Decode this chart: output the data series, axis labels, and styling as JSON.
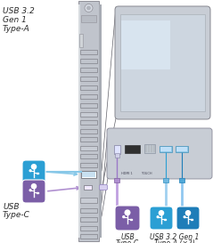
{
  "usb_type_a_label": [
    "USB 3.2",
    "Gen 1",
    "Type-A"
  ],
  "usb_type_c_label": [
    "USB",
    "Type-C"
  ],
  "bottom_usb_c_label": [
    "USB",
    "Type-C"
  ],
  "bottom_usb_a_label": [
    "USB 3.2 Gen 1",
    "Type-A (×2)"
  ],
  "color_blue": "#2b9fd4",
  "color_blue2": "#1e7db8",
  "color_purple": "#7B5EA7",
  "color_line_blue": "#88c8e8",
  "color_line_purple": "#b090d0",
  "color_panel_body": "#c0c4cc",
  "color_panel_edge": "#d8dce0",
  "color_panel_right": "#a8acb4",
  "color_screen_frame": "#c8cdd5",
  "color_screen_bg": "#cdd6e0",
  "color_port_bg": "#d4d8dc",
  "color_callout_bg": "#c8cdd5",
  "bg_color": "#ffffff",
  "text_color": "#2a2a2a",
  "line_color": "#505050"
}
